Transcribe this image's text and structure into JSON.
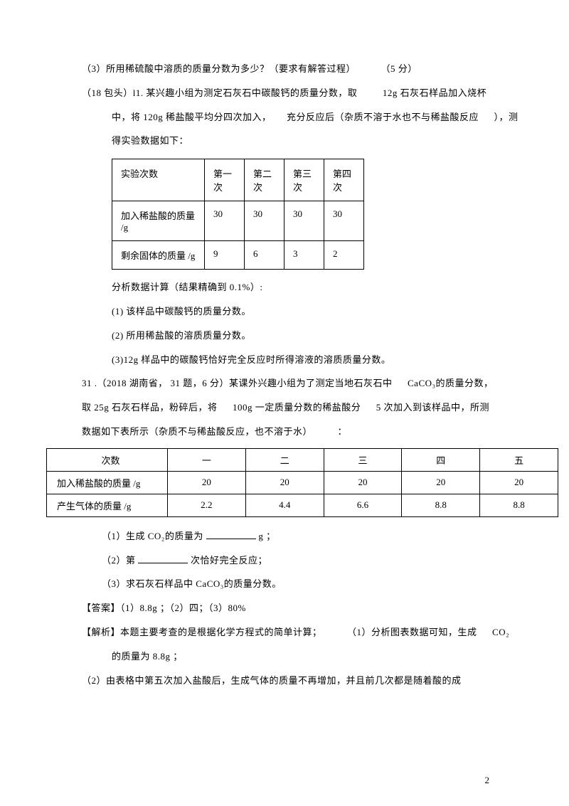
{
  "top": {
    "q3": "（3）所用稀硫酸中溶质的质量分数为多少？（要求有解答过程）",
    "q3_score": "（5 分）",
    "p18_a": "（18 包头）l1. 某兴趣小组为测定石灰石中碳酸钙的质量分数，取",
    "p18_b": "12g 石灰石样品加入烧杯",
    "p18_c": "中，将  120g 稀盐酸平均分四次加入，",
    "p18_d": "充分反应后（杂质不溶于水也不与稀盐酸反应",
    "p18_e": "），测",
    "p18_f": "得实验数据如下："
  },
  "t1": {
    "h0": "实验次数",
    "h1": "第一次",
    "h2": "第二次",
    "h3": "第三次",
    "h4": "第四次",
    "r1c0": "加入稀盐酸的质量",
    "r1c0b": "/g",
    "r1": [
      "30",
      "30",
      "30",
      "30"
    ],
    "r2c0": "剩余固体的质量  /g",
    "r2": [
      "9",
      "6",
      "3",
      "2"
    ]
  },
  "mid": {
    "analysis": "分析数据计算（结果精确到  0.1%）:",
    "q1": "(1) 该样品中碳酸钙的质量分数。",
    "q2": "(2) 所用稀盐酸的溶质质量分数。",
    "q3": "(3)12g  样品中的碳酸钙恰好完全反应时所得溶液的溶质质量分数。"
  },
  "q31": {
    "a": "31 .（2018 湖南省， 31 题，6 分）某课外兴趣小组为了测定当地石灰石中",
    "b": "CaCO₃的质量分数，",
    "c": "取 25g 石灰石样品，粉碎后，将",
    "d": "100g 一定质量分数的稀盐酸分",
    "e": "5 次加入到该样品中，所测",
    "f": "数据如下表所示（杂质不与稀盐酸反应，也不溶于水）",
    "g": "："
  },
  "t2": {
    "h0": "次数",
    "h": [
      "一",
      "二",
      "三",
      "四",
      "五"
    ],
    "r1c0": "加入稀盐酸的质量  /g",
    "r1": [
      "20",
      "20",
      "20",
      "20",
      "20"
    ],
    "r2c0": "产生气体的质量  /g",
    "r2": [
      "2.2",
      "4.4",
      "6.6",
      "8.8",
      "8.8"
    ]
  },
  "bottom": {
    "q1a": "（1）生成  CO₂的质量为",
    "q1b": "g ；",
    "q2a": "（2）第",
    "q2b": "次恰好完全反应；",
    "q3": "（3）求石灰石样品中   CaCO₃的质量分数。",
    "ans": "【答案】（1）8.8g ；（2）四；（3）80%",
    "exp1a": "【解析】本题主要考查的是根据化学方程式的简单计算；",
    "exp1b": "（1）分析图表数据可知，生成",
    "exp1c": "CO₂",
    "exp2": "的质量为  8.8g ；",
    "exp3": "（2）由表格中第五次加入盐酸后，生成气体的质量不再增加，并且前几次都是随着酸的成"
  },
  "page": "2"
}
